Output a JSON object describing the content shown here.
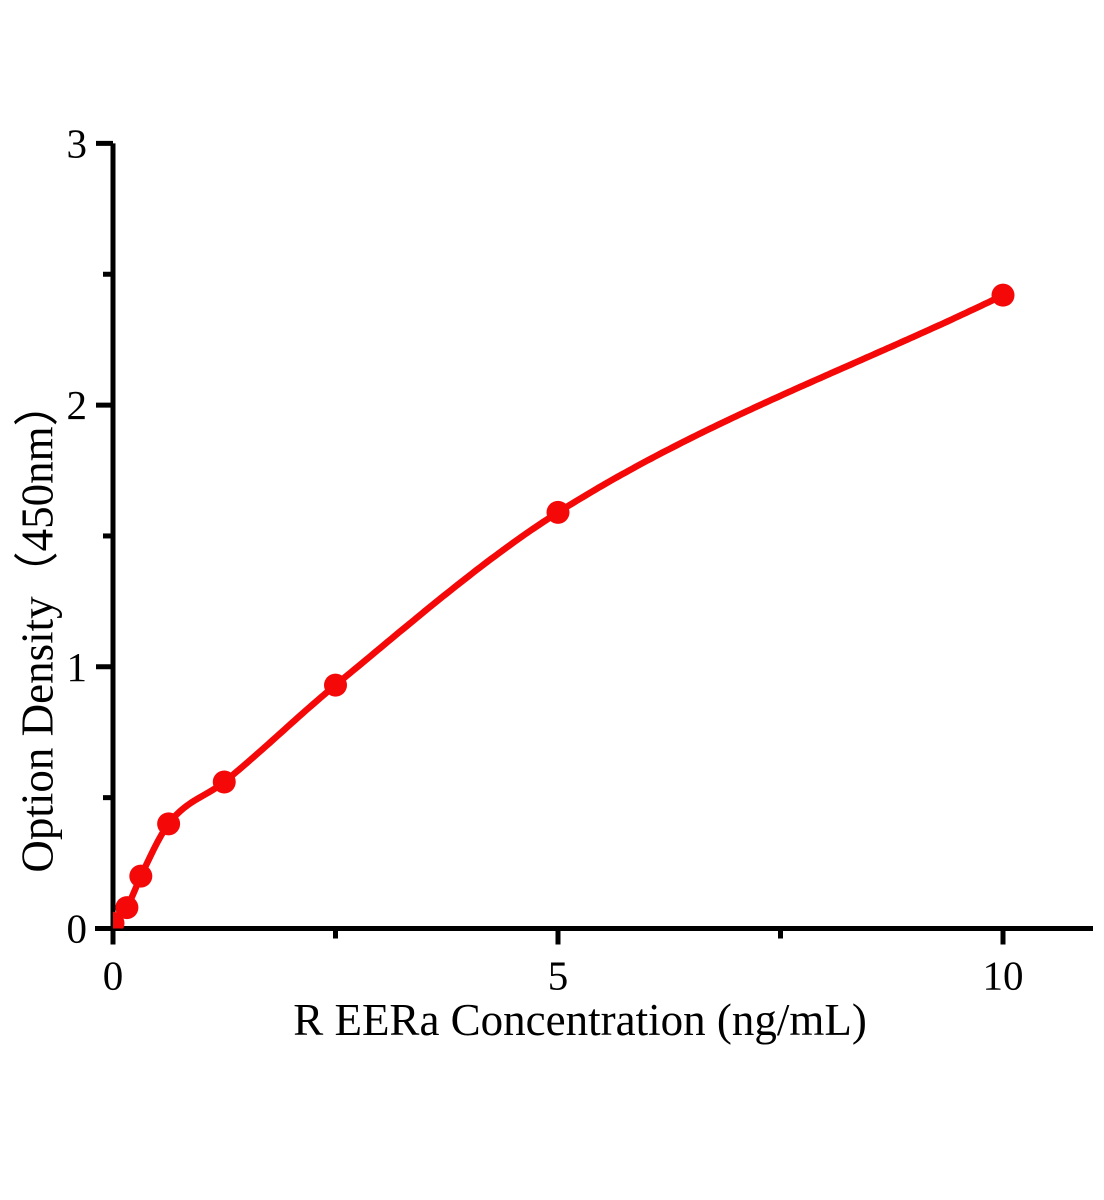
{
  "figure": {
    "background_color": "#ffffff",
    "axis_color": "#000000"
  },
  "chart_data": {
    "type": "scatter",
    "has_fit_curve": true,
    "title": "",
    "xlabel": "R EERa Concentration (ng/mL)",
    "ylabel": "Option Density（450nm）",
    "x": [
      0,
      0.156,
      0.3125,
      0.625,
      1.25,
      2.5,
      5,
      10
    ],
    "y": [
      0.02,
      0.08,
      0.2,
      0.4,
      0.56,
      0.93,
      1.59,
      2.42
    ],
    "xlim": [
      0,
      11
    ],
    "ylim": [
      0,
      3
    ],
    "x_major_ticks": [
      0,
      5,
      10
    ],
    "x_minor_ticks": [
      2.5,
      7.5
    ],
    "y_major_ticks": [
      0,
      1,
      2,
      3
    ],
    "y_minor_ticks": [
      0.5,
      1.5,
      2.5
    ],
    "x_tick_labels": [
      "0",
      "5",
      "10"
    ],
    "y_tick_labels": [
      "0",
      "1",
      "2",
      "3"
    ],
    "marker_color": "#f40808",
    "line_color": "#f40808",
    "grid": false,
    "legend": null
  }
}
